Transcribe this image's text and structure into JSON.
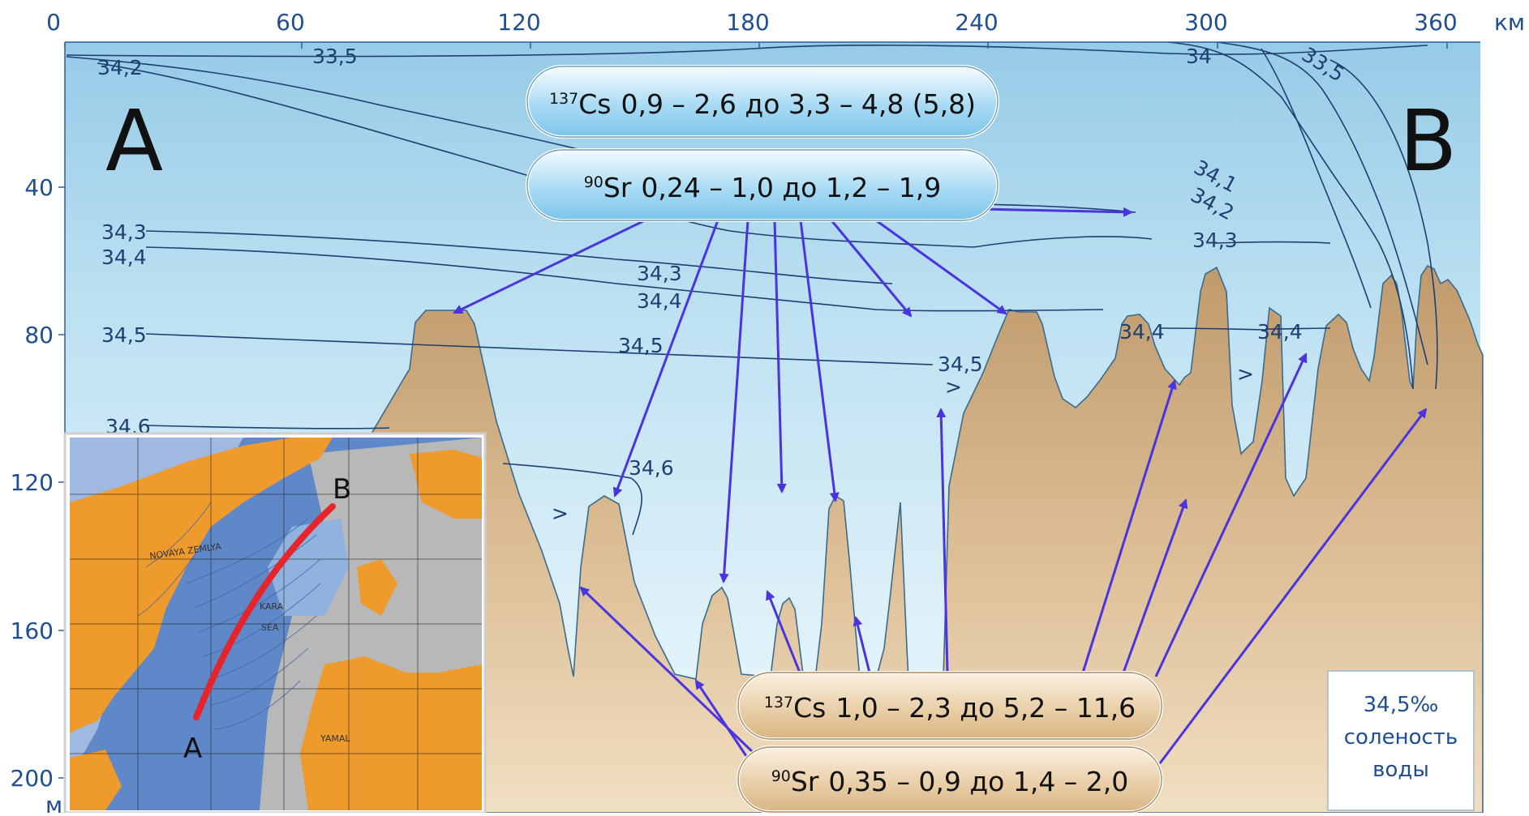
{
  "axes": {
    "x_unit": "км",
    "y_unit": "м",
    "x_ticks": [
      "0",
      "60",
      "120",
      "180",
      "240",
      "300",
      "360"
    ],
    "y_ticks": [
      "40",
      "80",
      "120",
      "160",
      "200"
    ]
  },
  "section_ends": {
    "start": "A",
    "end": "B"
  },
  "isohaline_labels": [
    "33,5",
    "34,2",
    "34",
    "33,5",
    "34,1",
    "34,2",
    "34,3",
    "34,4",
    "34,3",
    "34,4",
    "34,5",
    "34,5",
    "34,5",
    "34,6",
    "34,6",
    "34,3",
    "34,4",
    "34,4",
    ">",
    ">",
    ">"
  ],
  "water_box": {
    "cs": {
      "sup": "137",
      "element": "Cs",
      "range": "0,9 – 2,6 до 3,3 – 4,8 (5,8)"
    },
    "sr": {
      "sup": "90",
      "element": "Sr",
      "range": "0,24 – 1,0 до 1,2 – 1,9"
    }
  },
  "sediment_box": {
    "cs": {
      "sup": "137",
      "element": "Cs",
      "range": "1,0 – 2,3 до 5,2 – 11,6"
    },
    "sr": {
      "sup": "90",
      "element": "Sr",
      "range": "0,35 – 0,9 до 1,4 – 2,0"
    }
  },
  "legend": {
    "value": "34,5‰",
    "line1": "соленость",
    "line2": "воды"
  },
  "inset_map": {
    "point_a": "A",
    "point_b": "B",
    "labels": [
      "KARA",
      "SEA",
      "YAMAL",
      "NOVAYA ZEMLYA"
    ]
  },
  "colors": {
    "water_top": "#9dd0ea",
    "water_bottom": "#eef8fc",
    "seabed": "#d8b88f",
    "arrow": "#4a34e0",
    "isoline": "#1f3f73",
    "inset_land": "#ee9a2c",
    "inset_sea": "#5f88c8",
    "route": "#e5242b"
  }
}
